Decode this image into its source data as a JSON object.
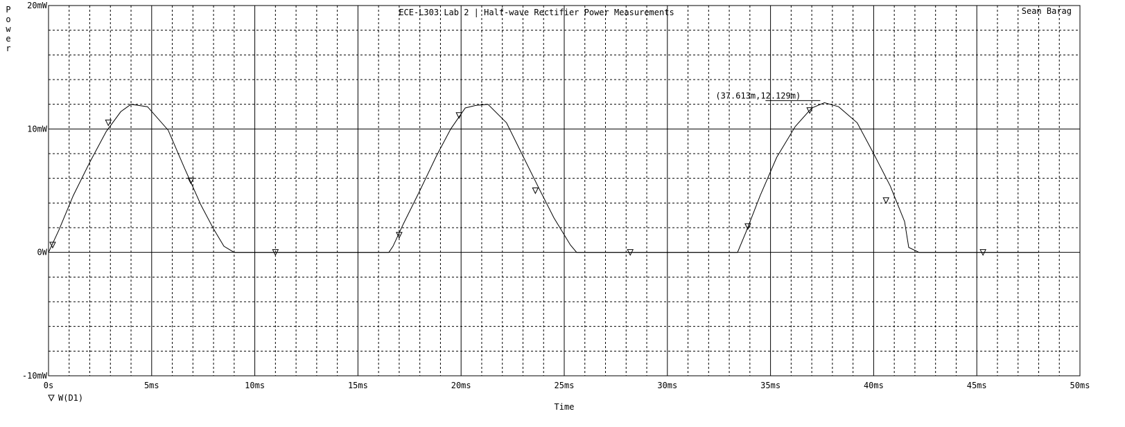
{
  "chart_data": {
    "type": "line",
    "title": "ECE-L303 Lab 2 | Half-wave Rectifier Power Measurements",
    "author": "Sean Barag",
    "xlabel": "Time",
    "ylabel": "Power",
    "xlim": [
      0,
      50
    ],
    "ylim": [
      -10,
      20
    ],
    "x_ticks": [
      0,
      5,
      10,
      15,
      20,
      25,
      30,
      35,
      40,
      45,
      50
    ],
    "x_tick_labels": [
      "0s",
      "5ms",
      "10ms",
      "15ms",
      "20ms",
      "25ms",
      "30ms",
      "35ms",
      "40ms",
      "45ms",
      "50ms"
    ],
    "y_ticks": [
      -10,
      0,
      10,
      20
    ],
    "y_tick_labels": [
      "-10mW",
      "0W",
      "10mW",
      "20mW"
    ],
    "grid": true,
    "legend": [
      {
        "name": "W(D1)",
        "marker": "inverted-triangle"
      }
    ],
    "annotation": {
      "text": "(37.613m,12.129m)",
      "x": 37.613,
      "y": 12.129
    },
    "series": [
      {
        "name": "W(D1)",
        "x": [
          0,
          0.5,
          1.2,
          2.0,
          2.8,
          3.5,
          4.0,
          4.8,
          5.8,
          6.6,
          7.4,
          8.0,
          8.5,
          9.0,
          12,
          16.5,
          16.7,
          17.2,
          18.0,
          18.8,
          19.5,
          20.2,
          20.7,
          21.3,
          22.2,
          23.0,
          23.8,
          24.5,
          25.3,
          25.6,
          26.0,
          30,
          33.4,
          33.8,
          34.5,
          35.3,
          36.2,
          37.0,
          37.613,
          38.3,
          39.2,
          40.0,
          40.8,
          41.5,
          41.7,
          42.2,
          48
        ],
        "y": [
          0,
          1.8,
          4.6,
          7.3,
          9.8,
          11.4,
          12.0,
          11.8,
          9.9,
          6.8,
          3.8,
          1.9,
          0.5,
          0,
          0,
          0,
          0.5,
          2.3,
          5.0,
          7.8,
          10.0,
          11.7,
          11.9,
          12.0,
          10.5,
          7.8,
          5.1,
          2.8,
          0.6,
          0,
          0,
          0,
          0,
          1.6,
          4.6,
          7.7,
          10.2,
          11.7,
          12.129,
          11.8,
          10.5,
          8.0,
          5.4,
          2.5,
          0.4,
          0,
          0
        ],
        "markers_x": [
          0.2,
          2.9,
          6.9,
          11.0,
          17.0,
          19.9,
          23.6,
          28.2,
          33.9,
          36.9,
          40.6,
          45.3
        ],
        "markers_y": [
          0.6,
          10.5,
          5.8,
          0,
          1.4,
          11.1,
          5.0,
          0,
          2.1,
          11.5,
          4.2,
          0
        ]
      }
    ]
  }
}
